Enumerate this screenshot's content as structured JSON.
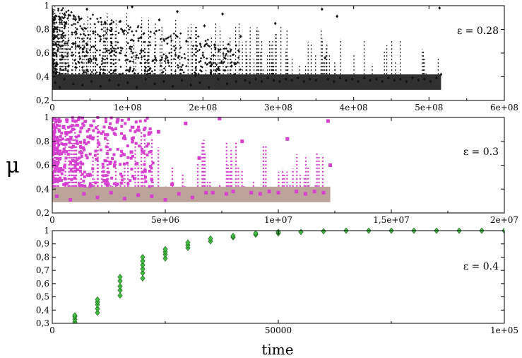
{
  "figure": {
    "ylabel": "μ",
    "xlabel": "time"
  },
  "chart_data": [
    {
      "type": "scatter",
      "annotation": "ε = 0.28",
      "xlim": [
        0,
        600000000
      ],
      "ylim": [
        0.2,
        1.0
      ],
      "xticks": [
        0,
        100000000,
        200000000,
        300000000,
        400000000,
        500000000,
        600000000
      ],
      "xtick_labels": [
        "0",
        "1e+08",
        "2e+08",
        "3e+08",
        "4e+08",
        "5e+08",
        "6e+08"
      ],
      "yticks": [
        0.2,
        0.4,
        0.6,
        0.8,
        1.0
      ],
      "ytick_labels": [
        "0,2",
        "0,4",
        "0,6",
        "0,8",
        "1"
      ],
      "grid": false,
      "marker": "diamond",
      "color": "#111111",
      "points": [
        [
          4000000,
          0.35
        ],
        [
          10000000,
          0.31
        ],
        [
          16000000,
          0.38
        ],
        [
          22000000,
          0.92
        ],
        [
          28000000,
          0.34
        ],
        [
          34000000,
          0.66
        ],
        [
          40000000,
          0.33
        ],
        [
          46000000,
          0.97
        ],
        [
          52000000,
          0.36
        ],
        [
          58000000,
          0.55
        ],
        [
          64000000,
          0.32
        ],
        [
          70000000,
          0.86
        ],
        [
          76000000,
          0.37
        ],
        [
          82000000,
          0.45
        ],
        [
          88000000,
          0.33
        ],
        [
          94000000,
          0.78
        ],
        [
          100000000,
          0.35
        ],
        [
          106000000,
          0.99
        ],
        [
          112000000,
          0.31
        ],
        [
          118000000,
          0.62
        ],
        [
          124000000,
          0.38
        ],
        [
          130000000,
          0.47
        ],
        [
          136000000,
          0.34
        ],
        [
          142000000,
          0.88
        ],
        [
          148000000,
          0.36
        ],
        [
          154000000,
          0.52
        ],
        [
          160000000,
          0.32
        ],
        [
          166000000,
          0.95
        ],
        [
          172000000,
          0.37
        ],
        [
          178000000,
          0.7
        ],
        [
          184000000,
          0.33
        ],
        [
          190000000,
          0.41
        ],
        [
          196000000,
          0.35
        ],
        [
          202000000,
          0.83
        ],
        [
          208000000,
          0.31
        ],
        [
          214000000,
          0.58
        ],
        [
          220000000,
          0.38
        ],
        [
          226000000,
          0.93
        ],
        [
          232000000,
          0.34
        ],
        [
          238000000,
          0.49
        ],
        [
          244000000,
          0.36
        ],
        [
          250000000,
          0.74
        ],
        [
          256000000,
          0.37
        ],
        [
          262000000,
          0.35
        ],
        [
          270000000,
          0.38
        ],
        [
          278000000,
          0.36
        ],
        [
          286000000,
          0.39
        ],
        [
          294000000,
          0.37
        ],
        [
          296000000,
          0.85
        ],
        [
          302000000,
          0.36
        ],
        [
          310000000,
          0.38
        ],
        [
          318000000,
          0.37
        ],
        [
          326000000,
          0.39
        ],
        [
          334000000,
          0.36
        ],
        [
          342000000,
          0.38
        ],
        [
          350000000,
          0.37
        ],
        [
          358000000,
          0.97
        ],
        [
          362000000,
          0.56
        ],
        [
          366000000,
          0.38
        ],
        [
          374000000,
          0.36
        ],
        [
          378000000,
          0.91
        ],
        [
          382000000,
          0.39
        ],
        [
          390000000,
          0.37
        ],
        [
          398000000,
          0.38
        ],
        [
          406000000,
          0.36
        ],
        [
          414000000,
          0.39
        ],
        [
          422000000,
          0.37
        ],
        [
          430000000,
          0.38
        ],
        [
          438000000,
          0.36
        ],
        [
          446000000,
          0.39
        ],
        [
          454000000,
          0.37
        ],
        [
          462000000,
          0.38
        ],
        [
          470000000,
          0.36
        ],
        [
          478000000,
          0.39
        ],
        [
          486000000,
          0.37
        ],
        [
          494000000,
          0.38
        ],
        [
          502000000,
          0.36
        ],
        [
          510000000,
          0.39
        ],
        [
          514000000,
          0.98
        ],
        [
          516000000,
          0.42
        ]
      ]
    },
    {
      "type": "scatter",
      "annotation": "ε = 0.3",
      "xlim": [
        0,
        20000000
      ],
      "ylim": [
        0.2,
        1.0
      ],
      "xticks": [
        0,
        5000000,
        10000000,
        15000000,
        20000000
      ],
      "xtick_labels": [
        "0",
        "5e+06",
        "1e+07",
        "1,5e+07",
        "2e+07"
      ],
      "yticks": [
        0.2,
        0.4,
        0.6,
        0.8,
        1.0
      ],
      "ytick_labels": [
        "0,2",
        "0,4",
        "0,6",
        "0,8",
        "1"
      ],
      "grid": false,
      "marker": "square",
      "color": "#d63fd0",
      "band_color": "#b59a8f",
      "points": [
        [
          200000,
          0.34
        ],
        [
          500000,
          0.92
        ],
        [
          800000,
          0.31
        ],
        [
          1100000,
          0.61
        ],
        [
          1400000,
          0.36
        ],
        [
          1700000,
          0.83
        ],
        [
          2000000,
          0.33
        ],
        [
          2300000,
          0.47
        ],
        [
          2600000,
          0.37
        ],
        [
          2900000,
          0.98
        ],
        [
          3200000,
          0.32
        ],
        [
          3500000,
          0.71
        ],
        [
          3800000,
          0.35
        ],
        [
          4100000,
          0.55
        ],
        [
          4400000,
          0.34
        ],
        [
          4700000,
          0.88
        ],
        [
          5000000,
          0.31
        ],
        [
          5300000,
          0.44
        ],
        [
          5600000,
          0.36
        ],
        [
          5900000,
          0.95
        ],
        [
          6200000,
          0.33
        ],
        [
          6500000,
          0.66
        ],
        [
          6800000,
          0.37
        ],
        [
          7100000,
          0.37
        ],
        [
          7400000,
          0.99
        ],
        [
          7700000,
          0.36
        ],
        [
          8000000,
          0.38
        ],
        [
          8400000,
          0.8
        ],
        [
          8800000,
          0.37
        ],
        [
          9200000,
          0.36
        ],
        [
          9600000,
          0.38
        ],
        [
          10000000,
          0.37
        ],
        [
          10400000,
          0.82
        ],
        [
          10800000,
          0.38
        ],
        [
          11200000,
          0.36
        ],
        [
          11600000,
          0.38
        ],
        [
          12000000,
          0.37
        ],
        [
          12200000,
          0.97
        ],
        [
          12300000,
          0.6
        ]
      ]
    },
    {
      "type": "scatter",
      "annotation": "ε = 0.4",
      "xlim": [
        0,
        100000
      ],
      "ylim": [
        0.3,
        1.0
      ],
      "xticks": [
        0,
        50000,
        100000
      ],
      "xtick_labels": [
        "0",
        "50000",
        "1e+05"
      ],
      "yticks": [
        0.3,
        0.4,
        0.5,
        0.6,
        0.7,
        0.8,
        0.9,
        1.0
      ],
      "ytick_labels": [
        "0,3",
        "0,4",
        "0,5",
        "0,6",
        "0,7",
        "0,8",
        "0,9",
        "1"
      ],
      "grid": false,
      "marker": "diamond",
      "color": "#3fbf3f",
      "points": [
        [
          5000,
          0.31
        ],
        [
          5000,
          0.33
        ],
        [
          5000,
          0.35
        ],
        [
          5000,
          0.36
        ],
        [
          10000,
          0.38
        ],
        [
          10000,
          0.41
        ],
        [
          10000,
          0.44
        ],
        [
          10000,
          0.46
        ],
        [
          10000,
          0.48
        ],
        [
          15000,
          0.51
        ],
        [
          15000,
          0.55
        ],
        [
          15000,
          0.58
        ],
        [
          15000,
          0.62
        ],
        [
          15000,
          0.65
        ],
        [
          20000,
          0.64
        ],
        [
          20000,
          0.68
        ],
        [
          20000,
          0.71
        ],
        [
          20000,
          0.74
        ],
        [
          20000,
          0.77
        ],
        [
          20000,
          0.8
        ],
        [
          25000,
          0.79
        ],
        [
          25000,
          0.82
        ],
        [
          25000,
          0.84
        ],
        [
          25000,
          0.86
        ],
        [
          30000,
          0.87
        ],
        [
          30000,
          0.89
        ],
        [
          30000,
          0.91
        ],
        [
          35000,
          0.92
        ],
        [
          35000,
          0.94
        ],
        [
          40000,
          0.95
        ],
        [
          40000,
          0.96
        ],
        [
          45000,
          0.97
        ],
        [
          45000,
          0.98
        ],
        [
          50000,
          0.98
        ],
        [
          50000,
          0.99
        ],
        [
          55000,
          0.99
        ],
        [
          60000,
          0.995
        ],
        [
          65000,
          1.0
        ],
        [
          70000,
          1.0
        ],
        [
          75000,
          1.0
        ],
        [
          80000,
          1.0
        ],
        [
          85000,
          1.0
        ],
        [
          90000,
          1.0
        ],
        [
          95000,
          1.0
        ],
        [
          100000,
          1.0
        ]
      ]
    }
  ]
}
